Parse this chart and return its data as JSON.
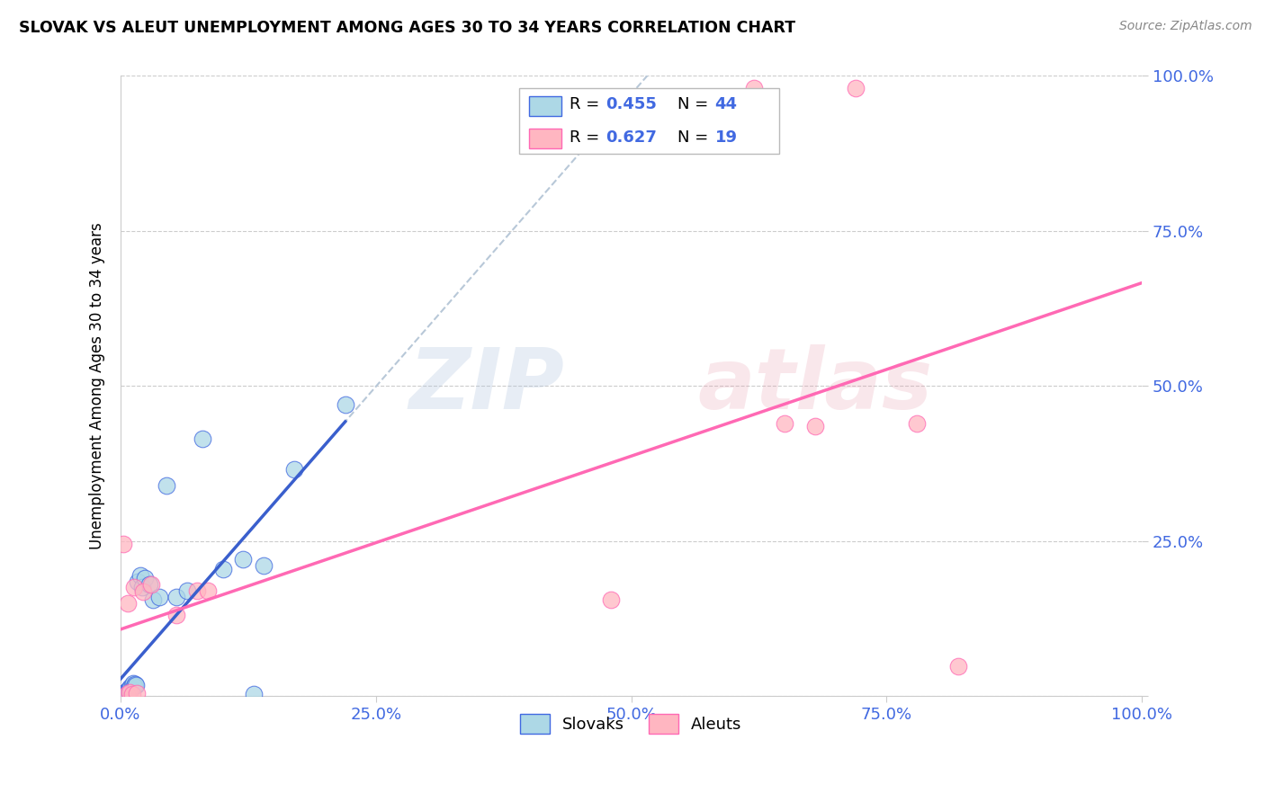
{
  "title": "SLOVAK VS ALEUT UNEMPLOYMENT AMONG AGES 30 TO 34 YEARS CORRELATION CHART",
  "source": "Source: ZipAtlas.com",
  "ylabel": "Unemployment Among Ages 30 to 34 years",
  "xlim": [
    0.0,
    1.0
  ],
  "ylim": [
    0.0,
    1.0
  ],
  "xtick_vals": [
    0.0,
    0.25,
    0.5,
    0.75,
    1.0
  ],
  "ytick_vals": [
    0.0,
    0.25,
    0.5,
    0.75,
    1.0
  ],
  "xticklabels": [
    "0.0%",
    "25.0%",
    "50.0%",
    "75.0%",
    "100.0%"
  ],
  "yticklabels": [
    "",
    "25.0%",
    "50.0%",
    "75.0%",
    "100.0%"
  ],
  "tick_color": "#4169E1",
  "slovak_face": "#ADD8E6",
  "slovak_edge": "#4169E1",
  "aleut_face": "#FFB6C1",
  "aleut_edge": "#FF69B4",
  "blue_line": "#3A5FCD",
  "pink_line": "#FF69B4",
  "gray_dash": "#B8C8D8",
  "R_slovak": "0.455",
  "N_slovak": "44",
  "R_aleut": "0.627",
  "N_aleut": "19",
  "slovak_x": [
    0.001,
    0.001,
    0.002,
    0.002,
    0.003,
    0.003,
    0.004,
    0.004,
    0.005,
    0.005,
    0.005,
    0.006,
    0.006,
    0.006,
    0.007,
    0.007,
    0.008,
    0.008,
    0.009,
    0.009,
    0.01,
    0.01,
    0.011,
    0.012,
    0.013,
    0.014,
    0.015,
    0.017,
    0.019,
    0.021,
    0.024,
    0.028,
    0.032,
    0.038,
    0.045,
    0.055,
    0.065,
    0.08,
    0.1,
    0.12,
    0.14,
    0.17,
    0.22,
    0.13
  ],
  "slovak_y": [
    0.001,
    0.002,
    0.001,
    0.003,
    0.002,
    0.004,
    0.003,
    0.005,
    0.003,
    0.006,
    0.004,
    0.005,
    0.007,
    0.008,
    0.006,
    0.009,
    0.007,
    0.011,
    0.01,
    0.013,
    0.012,
    0.015,
    0.018,
    0.02,
    0.016,
    0.019,
    0.017,
    0.185,
    0.195,
    0.175,
    0.19,
    0.18,
    0.155,
    0.16,
    0.34,
    0.16,
    0.17,
    0.415,
    0.205,
    0.22,
    0.21,
    0.365,
    0.47,
    0.003
  ],
  "aleut_x": [
    0.003,
    0.006,
    0.007,
    0.009,
    0.011,
    0.013,
    0.016,
    0.022,
    0.03,
    0.055,
    0.075,
    0.48,
    0.62,
    0.65,
    0.68,
    0.72,
    0.78,
    0.82,
    0.085
  ],
  "aleut_y": [
    0.245,
    0.003,
    0.15,
    0.006,
    0.003,
    0.175,
    0.005,
    0.168,
    0.18,
    0.13,
    0.17,
    0.155,
    0.98,
    0.44,
    0.435,
    0.98,
    0.44,
    0.048,
    0.17
  ],
  "slovak_line_x_start": 0.0,
  "slovak_line_x_end": 0.22,
  "aleut_line_x_start": 0.0,
  "aleut_line_x_end": 1.0,
  "dash_line_x_start": 0.0,
  "dash_line_x_end": 1.0
}
